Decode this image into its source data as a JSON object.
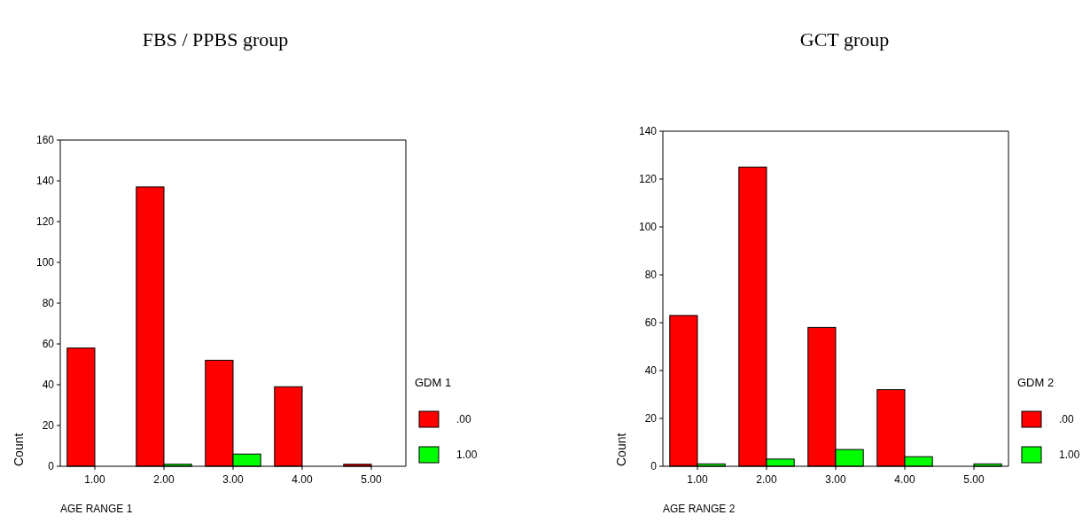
{
  "chart_data": [
    {
      "type": "bar",
      "title": "FBS / PPBS group",
      "xlabel": "AGE RANGE 1",
      "ylabel": "Count",
      "legend_title": "GDM 1",
      "categories": [
        "1.00",
        "2.00",
        "3.00",
        "4.00",
        "5.00"
      ],
      "series": [
        {
          "name": ".00",
          "color": "#ff0000",
          "values": [
            58,
            137,
            52,
            39,
            1
          ]
        },
        {
          "name": "1.00",
          "color": "#00ff00",
          "values": [
            0,
            1,
            6,
            0,
            0
          ]
        }
      ],
      "ylim": [
        0,
        160
      ],
      "yticks": [
        0,
        20,
        40,
        60,
        80,
        100,
        120,
        140,
        160
      ],
      "legend": "right",
      "grid": false
    },
    {
      "type": "bar",
      "title": "GCT group",
      "xlabel": "AGE RANGE 2",
      "ylabel": "Count",
      "legend_title": "GDM 2",
      "categories": [
        "1.00",
        "2.00",
        "3.00",
        "4.00",
        "5.00"
      ],
      "series": [
        {
          "name": ".00",
          "color": "#ff0000",
          "values": [
            63,
            125,
            58,
            32,
            0
          ]
        },
        {
          "name": "1.00",
          "color": "#00ff00",
          "values": [
            1,
            3,
            7,
            4,
            1
          ]
        }
      ],
      "ylim": [
        0,
        140
      ],
      "yticks": [
        0,
        20,
        40,
        60,
        80,
        100,
        120,
        140
      ],
      "legend": "right",
      "grid": false
    }
  ]
}
